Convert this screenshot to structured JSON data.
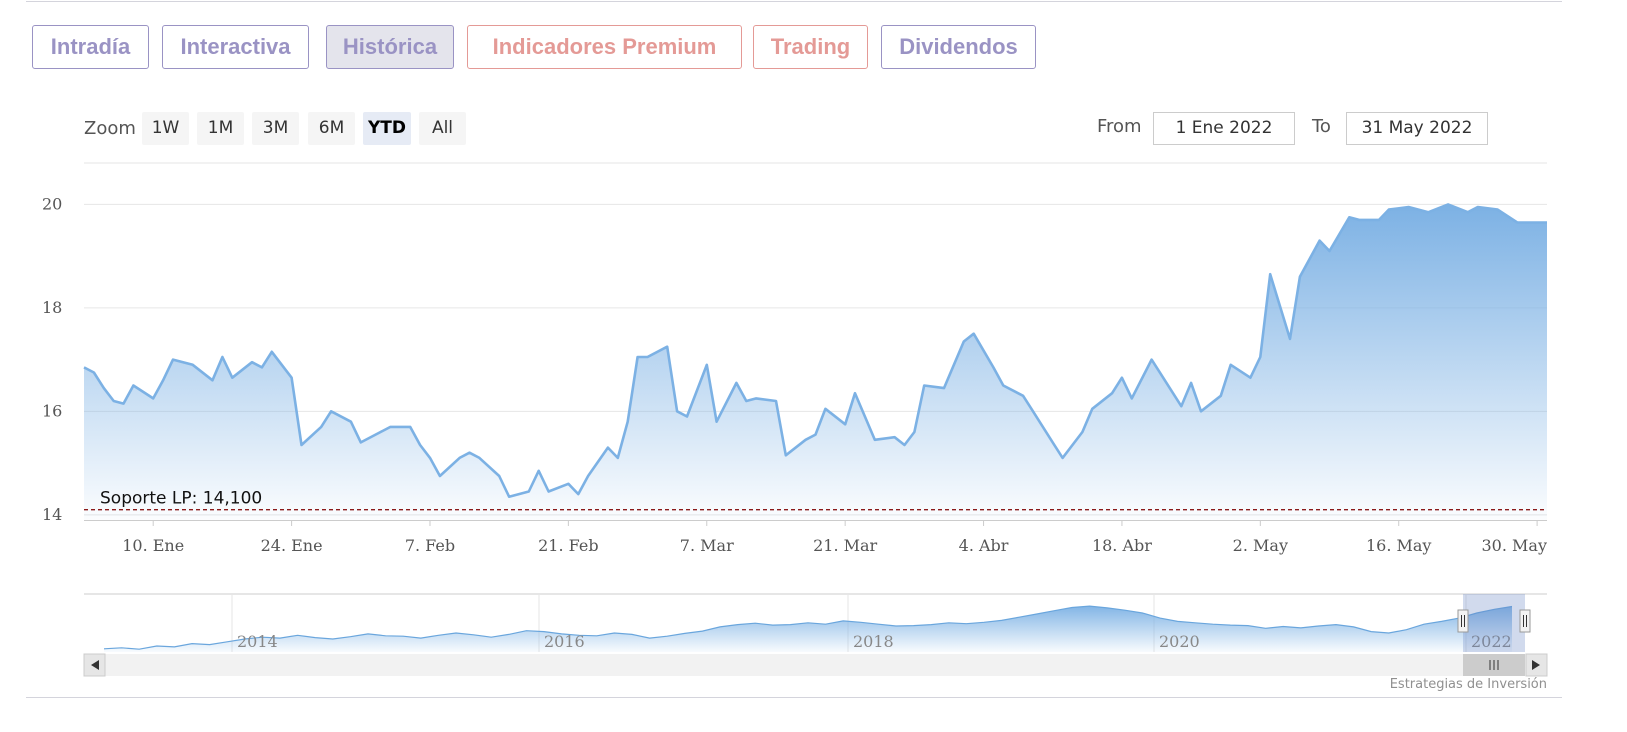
{
  "tabs": [
    {
      "label": "Intradía",
      "color": "purple",
      "active": false
    },
    {
      "label": "Interactiva",
      "color": "purple",
      "active": false
    },
    {
      "label": "Histórica",
      "color": "purple",
      "active": true
    },
    {
      "label": "Indicadores Premium",
      "color": "red",
      "active": false
    },
    {
      "label": "Trading",
      "color": "red",
      "active": false
    },
    {
      "label": "Dividendos",
      "color": "purple",
      "active": false
    }
  ],
  "zoom": {
    "label": "Zoom",
    "buttons": [
      "1W",
      "1M",
      "3M",
      "6M",
      "YTD",
      "All"
    ],
    "selected": "YTD"
  },
  "range": {
    "from_label": "From",
    "from_value": "1 Ene 2022",
    "to_label": "To",
    "to_value": "31 May 2022"
  },
  "credit": "Estrategias de Inversión",
  "colors": {
    "series": "#7cb1e4",
    "support": "#8b1a1a",
    "purple_tab": "#9a93c4",
    "red_tab": "#e49a96"
  },
  "chart_data": {
    "type": "area",
    "x_start": "2022-01-03",
    "x_end": "2022-05-31",
    "ylim": [
      13.9,
      20.8
    ],
    "yticks": [
      14,
      16,
      18,
      20
    ],
    "xtick_labels": [
      "10. Ene",
      "24. Ene",
      "7. Feb",
      "21. Feb",
      "7. Mar",
      "21. Mar",
      "4. Abr",
      "18. Abr",
      "2. May",
      "16. May",
      "30. May"
    ],
    "xtick_dates": [
      "2022-01-10",
      "2022-01-24",
      "2022-02-07",
      "2022-02-21",
      "2022-03-07",
      "2022-03-21",
      "2022-04-04",
      "2022-04-18",
      "2022-05-02",
      "2022-05-16",
      "2022-05-30"
    ],
    "series": [
      {
        "points": [
          [
            "2022-01-03",
            16.85
          ],
          [
            "2022-01-04",
            16.75
          ],
          [
            "2022-01-05",
            16.45
          ],
          [
            "2022-01-06",
            16.2
          ],
          [
            "2022-01-07",
            16.15
          ],
          [
            "2022-01-08",
            16.5
          ],
          [
            "2022-01-10",
            16.25
          ],
          [
            "2022-01-11",
            16.6
          ],
          [
            "2022-01-12",
            17.0
          ],
          [
            "2022-01-14",
            16.9
          ],
          [
            "2022-01-16",
            16.6
          ],
          [
            "2022-01-17",
            17.05
          ],
          [
            "2022-01-18",
            16.65
          ],
          [
            "2022-01-20",
            16.95
          ],
          [
            "2022-01-21",
            16.85
          ],
          [
            "2022-01-22",
            17.15
          ],
          [
            "2022-01-24",
            16.65
          ],
          [
            "2022-01-25",
            15.35
          ],
          [
            "2022-01-27",
            15.7
          ],
          [
            "2022-01-28",
            16.0
          ],
          [
            "2022-01-30",
            15.8
          ],
          [
            "2022-01-31",
            15.4
          ],
          [
            "2022-02-02",
            15.6
          ],
          [
            "2022-02-03",
            15.7
          ],
          [
            "2022-02-05",
            15.7
          ],
          [
            "2022-02-06",
            15.35
          ],
          [
            "2022-02-07",
            15.1
          ],
          [
            "2022-02-08",
            14.75
          ],
          [
            "2022-02-10",
            15.1
          ],
          [
            "2022-02-11",
            15.2
          ],
          [
            "2022-02-12",
            15.1
          ],
          [
            "2022-02-14",
            14.75
          ],
          [
            "2022-02-15",
            14.35
          ],
          [
            "2022-02-17",
            14.45
          ],
          [
            "2022-02-18",
            14.85
          ],
          [
            "2022-02-19",
            14.45
          ],
          [
            "2022-02-21",
            14.6
          ],
          [
            "2022-02-22",
            14.4
          ],
          [
            "2022-02-23",
            14.75
          ],
          [
            "2022-02-25",
            15.3
          ],
          [
            "2022-02-26",
            15.1
          ],
          [
            "2022-02-27",
            15.8
          ],
          [
            "2022-02-28",
            17.05
          ],
          [
            "2022-03-01",
            17.05
          ],
          [
            "2022-03-03",
            17.25
          ],
          [
            "2022-03-04",
            16.0
          ],
          [
            "2022-03-05",
            15.9
          ],
          [
            "2022-03-07",
            16.9
          ],
          [
            "2022-03-08",
            15.8
          ],
          [
            "2022-03-10",
            16.55
          ],
          [
            "2022-03-11",
            16.2
          ],
          [
            "2022-03-12",
            16.25
          ],
          [
            "2022-03-14",
            16.2
          ],
          [
            "2022-03-15",
            15.15
          ],
          [
            "2022-03-17",
            15.45
          ],
          [
            "2022-03-18",
            15.55
          ],
          [
            "2022-03-19",
            16.05
          ],
          [
            "2022-03-21",
            15.75
          ],
          [
            "2022-03-22",
            16.35
          ],
          [
            "2022-03-24",
            15.45
          ],
          [
            "2022-03-26",
            15.5
          ],
          [
            "2022-03-27",
            15.35
          ],
          [
            "2022-03-28",
            15.6
          ],
          [
            "2022-03-29",
            16.5
          ],
          [
            "2022-03-31",
            16.45
          ],
          [
            "2022-04-02",
            17.35
          ],
          [
            "2022-04-03",
            17.5
          ],
          [
            "2022-04-05",
            16.85
          ],
          [
            "2022-04-06",
            16.5
          ],
          [
            "2022-04-08",
            16.3
          ],
          [
            "2022-04-09",
            16.0
          ],
          [
            "2022-04-11",
            15.4
          ],
          [
            "2022-04-12",
            15.1
          ],
          [
            "2022-04-14",
            15.6
          ],
          [
            "2022-04-15",
            16.05
          ],
          [
            "2022-04-17",
            16.35
          ],
          [
            "2022-04-18",
            16.65
          ],
          [
            "2022-04-19",
            16.25
          ],
          [
            "2022-04-21",
            17.0
          ],
          [
            "2022-04-22",
            16.7
          ],
          [
            "2022-04-24",
            16.1
          ],
          [
            "2022-04-25",
            16.55
          ],
          [
            "2022-04-26",
            16.0
          ],
          [
            "2022-04-28",
            16.3
          ],
          [
            "2022-04-29",
            16.9
          ],
          [
            "2022-05-01",
            16.65
          ],
          [
            "2022-05-02",
            17.05
          ],
          [
            "2022-05-03",
            18.65
          ],
          [
            "2022-05-05",
            17.4
          ],
          [
            "2022-05-06",
            18.6
          ],
          [
            "2022-05-08",
            19.3
          ],
          [
            "2022-05-09",
            19.1
          ],
          [
            "2022-05-11",
            19.75
          ],
          [
            "2022-05-12",
            19.7
          ],
          [
            "2022-05-14",
            19.7
          ],
          [
            "2022-05-15",
            19.9
          ],
          [
            "2022-05-17",
            19.95
          ],
          [
            "2022-05-19",
            19.85
          ],
          [
            "2022-05-21",
            20.0
          ],
          [
            "2022-05-23",
            19.85
          ],
          [
            "2022-05-24",
            19.95
          ],
          [
            "2022-05-26",
            19.9
          ],
          [
            "2022-05-28",
            19.65
          ],
          [
            "2022-05-31",
            19.65
          ]
        ]
      }
    ],
    "plot_lines": [
      {
        "value": 14.1,
        "label": "Soporte LP: 14,100",
        "style": "dashed"
      }
    ],
    "navigator": {
      "year_labels": [
        "2014",
        "2016",
        "2018",
        "2020",
        "2022"
      ],
      "ylim": [
        10.0,
        22.5
      ],
      "series": [
        10.7,
        10.9,
        10.6,
        11.3,
        11.1,
        11.8,
        11.6,
        12.2,
        12.8,
        13.2,
        13.0,
        13.6,
        13.1,
        12.8,
        13.3,
        13.9,
        13.5,
        13.4,
        13.0,
        13.6,
        14.1,
        13.7,
        13.2,
        13.8,
        14.6,
        14.4,
        13.9,
        13.6,
        13.5,
        14.1,
        13.8,
        13.0,
        13.4,
        14.0,
        14.5,
        15.4,
        15.9,
        16.2,
        15.8,
        15.9,
        16.3,
        16.0,
        16.7,
        16.4,
        16.0,
        15.6,
        15.7,
        15.9,
        16.3,
        16.1,
        16.4,
        16.8,
        17.5,
        18.2,
        18.9,
        19.6,
        19.9,
        19.5,
        19.0,
        18.4,
        17.3,
        16.6,
        16.3,
        16.0,
        15.8,
        15.7,
        15.1,
        15.5,
        15.2,
        15.6,
        15.9,
        15.4,
        14.4,
        14.1,
        14.8,
        16.0,
        16.6,
        17.3,
        18.4,
        19.2,
        19.8
      ]
    }
  }
}
